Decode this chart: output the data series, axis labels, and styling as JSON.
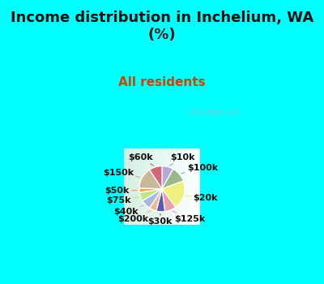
{
  "title": "Income distribution in Inchelium, WA\n(%)",
  "subtitle": "All residents",
  "bg_cyan": "#00FFFF",
  "labels": [
    "$10k",
    "$100k",
    "$20k",
    "$125k",
    "$30k",
    "$200k",
    "$40k",
    "$75k",
    "$50k",
    "$150k",
    "$60k"
  ],
  "sizes": [
    8,
    11,
    20,
    8,
    6,
    5,
    7,
    6,
    3,
    15,
    9
  ],
  "colors": [
    "#b8a8d8",
    "#9ab88a",
    "#f0f080",
    "#e8a0b0",
    "#5858b0",
    "#f0b898",
    "#a8b8e0",
    "#c0e880",
    "#f0a858",
    "#c8b898",
    "#d06878"
  ],
  "title_fontsize": 13,
  "subtitle_fontsize": 11,
  "subtitle_color": "#cc4400",
  "title_color": "#111111",
  "label_fontsize": 8,
  "watermark": "City-Data.com"
}
